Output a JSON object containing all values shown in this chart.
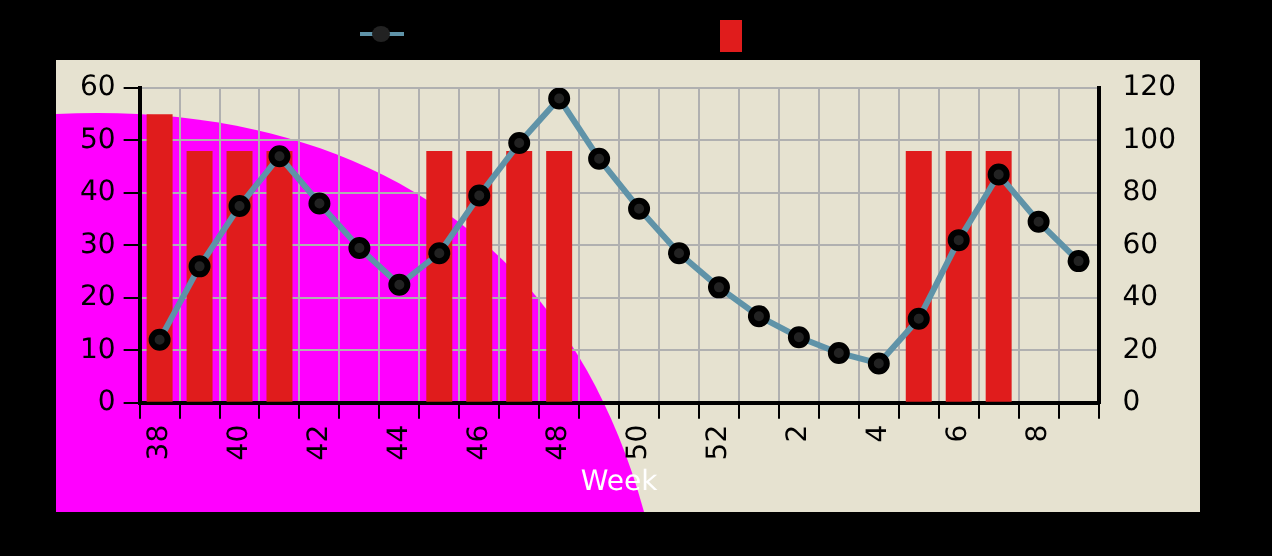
{
  "chart_data": {
    "type": "bar",
    "xlabel": "Week",
    "categories": [
      "38",
      null,
      "40",
      null,
      "42",
      null,
      "44",
      null,
      "46",
      null,
      "48",
      null,
      "50",
      null,
      "52",
      null,
      "2",
      null,
      "4",
      null,
      "6",
      null,
      "8",
      null
    ],
    "series": [
      {
        "type": "line",
        "axis": "y2",
        "color": "#5f93a8",
        "values": [
          24,
          52,
          75,
          94,
          76,
          59,
          45,
          57,
          79,
          99,
          116,
          93,
          74,
          57,
          44,
          33,
          25,
          19,
          15,
          32,
          62,
          87,
          69,
          54
        ]
      },
      {
        "color": "#e01c1c",
        "values": [
          55,
          48,
          48,
          48,
          null,
          null,
          null,
          48,
          48,
          48,
          48,
          null,
          null,
          null,
          null,
          null,
          null,
          null,
          null,
          48,
          48,
          48,
          null,
          null
        ]
      }
    ],
    "ylim": [
      0,
      60
    ],
    "yticks": [
      0,
      10,
      20,
      30,
      40,
      50,
      60
    ],
    "y2lim": [
      0,
      120
    ],
    "y2ticks": [
      0,
      20,
      40,
      60,
      80,
      100,
      120
    ],
    "grid": true,
    "marker": "circle",
    "line_style": "solid"
  }
}
